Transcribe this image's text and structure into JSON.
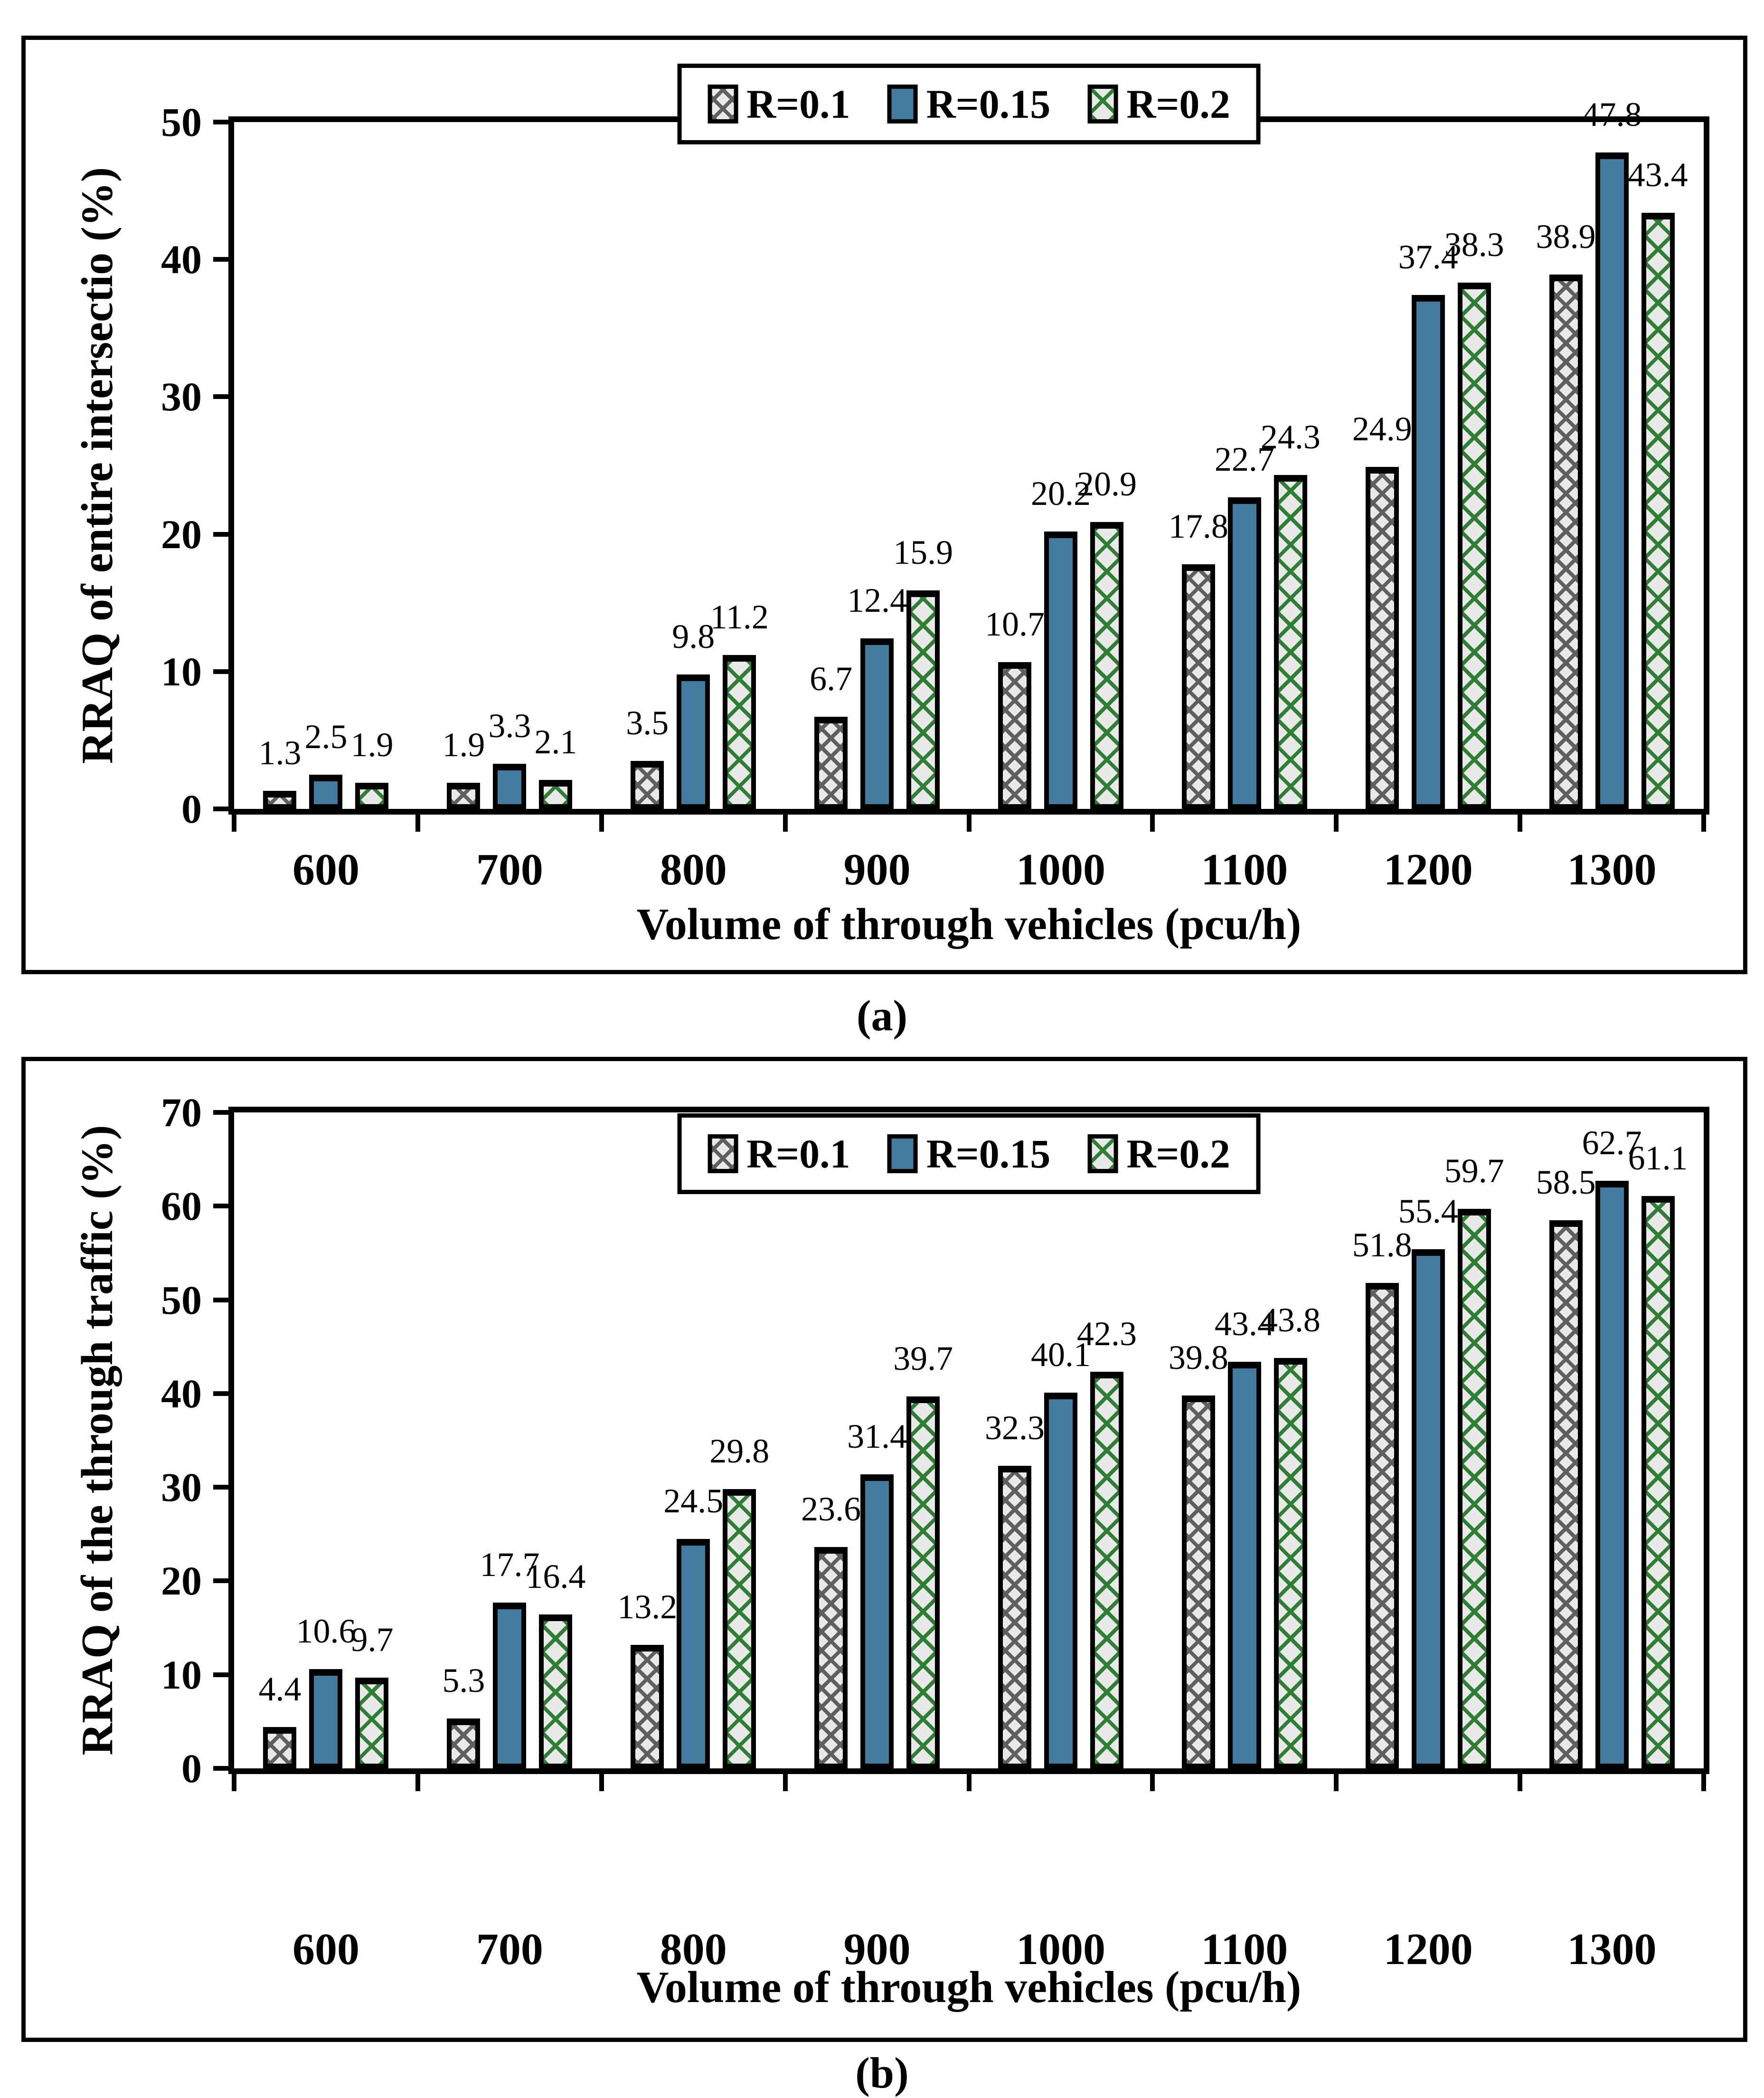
{
  "captions": {
    "a": "(a)",
    "b": "(b)"
  },
  "legend": {
    "labels": [
      "R=0.1",
      "R=0.15",
      "R=0.2"
    ]
  },
  "colors": {
    "bar_blue": "#417CA0",
    "pattern_green": "#2E7E33",
    "pattern_gray": "#5F5F5F",
    "pattern_background": "#E9E9E9",
    "axis_black": "#000000"
  },
  "chart_data": [
    {
      "type": "bar",
      "panel": "a",
      "ylabel": "RRAQ of entire intersectio (%)",
      "xlabel": "Volume of through vehicles (pcu/h)",
      "ylim": [
        0,
        50
      ],
      "yticks": [
        0,
        10,
        20,
        30,
        40,
        50
      ],
      "grid": false,
      "legend_position": "top-center",
      "data_labels": true,
      "categories": [
        "600",
        "700",
        "800",
        "900",
        "1000",
        "1100",
        "1200",
        "1300"
      ],
      "series": [
        {
          "name": "R=0.1",
          "values": [
            1.3,
            1.9,
            3.5,
            6.7,
            10.7,
            17.8,
            24.9,
            38.9
          ]
        },
        {
          "name": "R=0.15",
          "values": [
            2.5,
            3.3,
            9.8,
            12.4,
            20.2,
            22.7,
            37.4,
            47.8
          ]
        },
        {
          "name": "R=0.2",
          "values": [
            1.9,
            2.1,
            11.2,
            15.9,
            20.9,
            24.3,
            38.3,
            43.4
          ]
        }
      ]
    },
    {
      "type": "bar",
      "panel": "b",
      "ylabel": "RRAQ of the through traffic (%)",
      "xlabel": "Volume of through vehicles (pcu/h)",
      "ylim": [
        0,
        70
      ],
      "yticks": [
        0,
        10,
        20,
        30,
        40,
        50,
        60,
        70
      ],
      "grid": false,
      "legend_position": "top-center",
      "data_labels": true,
      "categories": [
        "600",
        "700",
        "800",
        "900",
        "1000",
        "1100",
        "1200",
        "1300"
      ],
      "series": [
        {
          "name": "R=0.1",
          "values": [
            4.4,
            5.3,
            13.2,
            23.6,
            32.3,
            39.8,
            51.8,
            58.5
          ]
        },
        {
          "name": "R=0.15",
          "values": [
            10.6,
            17.7,
            24.5,
            31.4,
            40.1,
            43.4,
            55.4,
            62.7
          ]
        },
        {
          "name": "R=0.2",
          "values": [
            9.7,
            16.4,
            29.8,
            39.7,
            42.3,
            43.8,
            59.7,
            61.1
          ]
        }
      ]
    }
  ]
}
